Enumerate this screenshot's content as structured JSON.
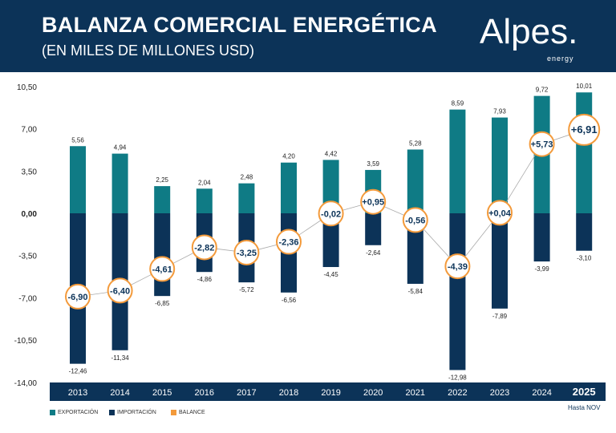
{
  "header": {
    "title": "BALANZA COMERCIAL ENERGÉTICA",
    "subtitle": "(EN MILES DE MILLONES USD)",
    "logo": "Alpes.",
    "logo_sub": "energy"
  },
  "note": "Hasta NOV",
  "colors": {
    "export": "#0f7b85",
    "import": "#0c3358",
    "balance": "#f39a3b"
  },
  "chart_data": {
    "type": "bar",
    "title": "BALANZA COMERCIAL ENERGÉTICA",
    "categories": [
      "2013",
      "2014",
      "2015",
      "2016",
      "2017",
      "2018",
      "2019",
      "2020",
      "2021",
      "2022",
      "2023",
      "2024",
      "2025"
    ],
    "series": [
      {
        "name": "EXPORTACIÓN",
        "values": [
          5.56,
          4.94,
          2.25,
          2.04,
          2.48,
          4.2,
          4.42,
          3.59,
          5.28,
          8.59,
          7.93,
          9.72,
          10.01
        ]
      },
      {
        "name": "IMPORTACIÓN",
        "values": [
          -12.46,
          -11.34,
          -6.85,
          -4.86,
          -5.72,
          -6.56,
          -4.45,
          -2.64,
          -5.84,
          -12.98,
          -7.89,
          -3.99,
          -3.1
        ]
      },
      {
        "name": "BALANCE",
        "type": "line",
        "values": [
          -6.9,
          -6.4,
          -4.61,
          -2.82,
          -3.25,
          -2.36,
          -0.02,
          0.95,
          -0.56,
          -4.39,
          0.04,
          5.73,
          6.91
        ]
      }
    ],
    "ylim": [
      -14,
      10.5
    ],
    "yticks": [
      "10,50",
      "7,00",
      "3,50",
      "0,00",
      "-3,50",
      "-7,00",
      "-10,50",
      "-14,00"
    ],
    "ytick_values": [
      10.5,
      7,
      3.5,
      0,
      -3.5,
      -7,
      -10.5,
      -14
    ],
    "legend": [
      "EXPORTACIÓN",
      "IMPORTACIÓN",
      "BALANCE"
    ],
    "legend_position": "bottom-left"
  }
}
